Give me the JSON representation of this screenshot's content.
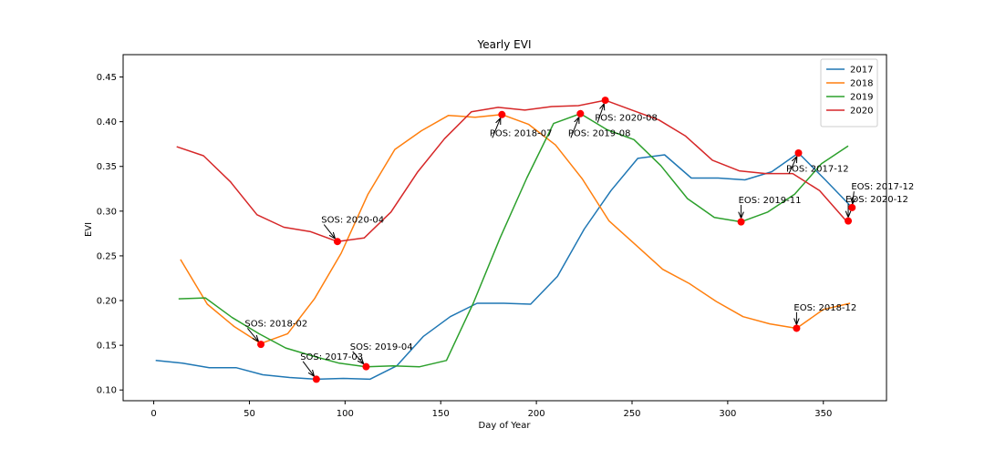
{
  "chart_data": {
    "type": "line",
    "title": "Yearly EVI",
    "xlabel": "Day of Year",
    "ylabel": "EVI",
    "xlim": [
      -16,
      383
    ],
    "ylim": [
      0.088,
      0.475
    ],
    "xticks": [
      0,
      50,
      100,
      150,
      200,
      250,
      300,
      350
    ],
    "yticks": [
      0.1,
      0.15,
      0.2,
      0.25,
      0.3,
      0.35,
      0.4,
      0.45
    ],
    "grid": false,
    "legend_position": "top-right",
    "series": [
      {
        "name": "2017",
        "color": "#1f77b4",
        "x": [
          1,
          15,
          29,
          43,
          57,
          71,
          85,
          99,
          113,
          127,
          141,
          155,
          169,
          183,
          197,
          211,
          225,
          239,
          253,
          267,
          281,
          295,
          309,
          323,
          337,
          351,
          365
        ],
        "y": [
          0.133,
          0.13,
          0.125,
          0.125,
          0.117,
          0.114,
          0.112,
          0.113,
          0.112,
          0.127,
          0.16,
          0.182,
          0.197,
          0.197,
          0.196,
          0.227,
          0.28,
          0.323,
          0.359,
          0.363,
          0.337,
          0.337,
          0.335,
          0.344,
          0.365,
          0.335,
          0.304
        ]
      },
      {
        "name": "2018",
        "color": "#ff7f0e",
        "x": [
          14,
          28,
          42,
          56,
          70,
          84,
          98,
          112,
          126,
          140,
          154,
          168,
          182,
          196,
          210,
          224,
          238,
          252,
          266,
          280,
          294,
          308,
          322,
          336,
          350,
          364
        ],
        "y": [
          0.246,
          0.196,
          0.171,
          0.152,
          0.163,
          0.202,
          0.253,
          0.319,
          0.369,
          0.39,
          0.407,
          0.405,
          0.408,
          0.397,
          0.374,
          0.336,
          0.289,
          0.262,
          0.235,
          0.219,
          0.199,
          0.182,
          0.174,
          0.169,
          0.19,
          0.197
        ]
      },
      {
        "name": "2019",
        "color": "#2ca02c",
        "x": [
          13,
          27,
          41,
          55,
          69,
          83,
          97,
          111,
          125,
          139,
          153,
          167,
          181,
          195,
          209,
          223,
          237,
          251,
          265,
          279,
          293,
          307,
          321,
          335,
          349,
          363
        ],
        "y": [
          0.202,
          0.203,
          0.181,
          0.163,
          0.147,
          0.138,
          0.13,
          0.126,
          0.127,
          0.126,
          0.133,
          0.197,
          0.27,
          0.337,
          0.398,
          0.409,
          0.391,
          0.38,
          0.351,
          0.314,
          0.293,
          0.288,
          0.299,
          0.319,
          0.353,
          0.373
        ]
      },
      {
        "name": "2020",
        "color": "#d62728",
        "x": [
          12,
          26,
          40,
          54,
          68,
          82,
          96,
          110,
          124,
          138,
          152,
          166,
          180,
          194,
          208,
          222,
          236,
          250,
          264,
          278,
          292,
          306,
          320,
          334,
          348,
          362
        ],
        "y": [
          0.372,
          0.362,
          0.333,
          0.296,
          0.282,
          0.277,
          0.266,
          0.27,
          0.299,
          0.344,
          0.381,
          0.411,
          0.416,
          0.413,
          0.417,
          0.418,
          0.424,
          0.413,
          0.402,
          0.384,
          0.357,
          0.345,
          0.342,
          0.342,
          0.323,
          0.289
        ]
      }
    ],
    "annotations": [
      {
        "text": "SOS: 2017-03",
        "x": 85,
        "y": 0.112,
        "text_x": 78,
        "text_y": 0.132
      },
      {
        "text": "POS: 2017-12",
        "x": 337,
        "y": 0.365,
        "text_x": 332,
        "text_y": 0.342
      },
      {
        "text": "EOS: 2017-12",
        "x": 365,
        "y": 0.304,
        "text_x": 366,
        "text_y": 0.322
      },
      {
        "text": "SOS: 2018-02",
        "x": 56,
        "y": 0.151,
        "text_x": 49,
        "text_y": 0.169
      },
      {
        "text": "POS: 2018-07",
        "x": 182,
        "y": 0.408,
        "text_x": 177,
        "text_y": 0.382
      },
      {
        "text": "EOS: 2018-12",
        "x": 336,
        "y": 0.169,
        "text_x": 336,
        "text_y": 0.187
      },
      {
        "text": "SOS: 2019-04",
        "x": 111,
        "y": 0.126,
        "text_x": 104,
        "text_y": 0.143
      },
      {
        "text": "POS: 2019-08",
        "x": 223,
        "y": 0.409,
        "text_x": 218,
        "text_y": 0.382
      },
      {
        "text": "EOS: 2019-11",
        "x": 307,
        "y": 0.288,
        "text_x": 307,
        "text_y": 0.307
      },
      {
        "text": "SOS: 2020-04",
        "x": 96,
        "y": 0.266,
        "text_x": 89,
        "text_y": 0.285
      },
      {
        "text": "POS: 2020-08",
        "x": 236,
        "y": 0.424,
        "text_x": 232,
        "text_y": 0.399
      },
      {
        "text": "EOS: 2020-12",
        "x": 363,
        "y": 0.289,
        "text_x": 363,
        "text_y": 0.308
      }
    ],
    "marker_color": "#ff0000"
  }
}
